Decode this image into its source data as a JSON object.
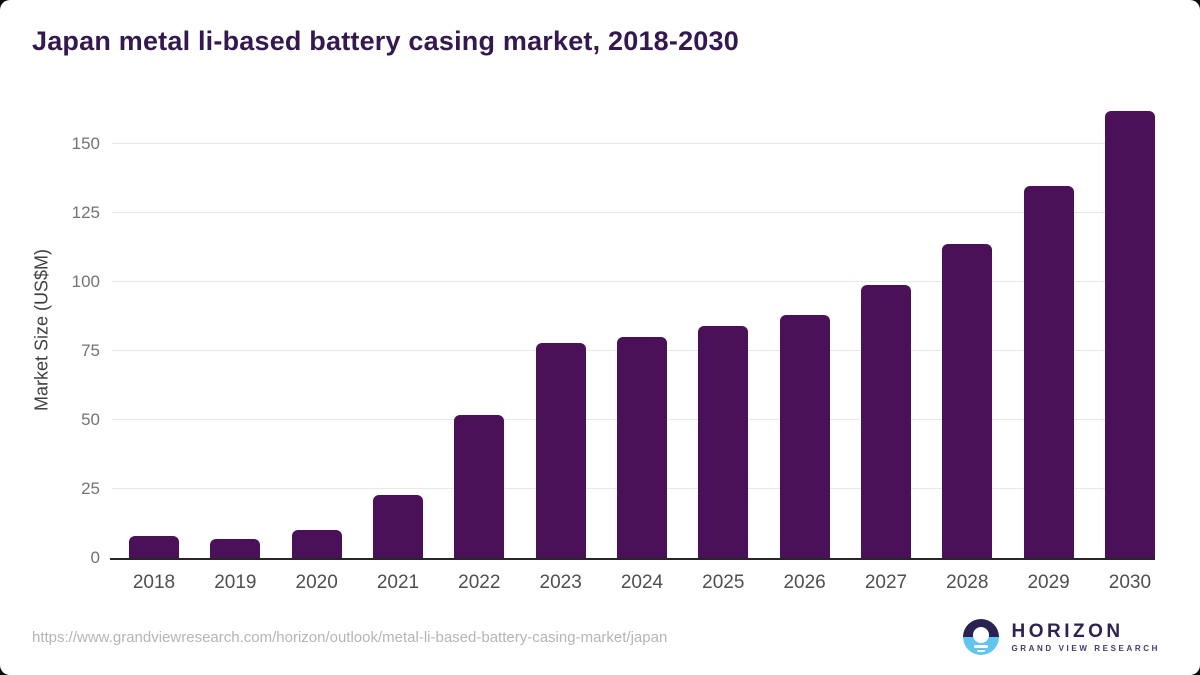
{
  "chart_data": {
    "type": "bar",
    "title": "Japan metal li-based battery casing market, 2018-2030",
    "categories": [
      "2018",
      "2019",
      "2020",
      "2021",
      "2022",
      "2023",
      "2024",
      "2025",
      "2026",
      "2027",
      "2028",
      "2029",
      "2030"
    ],
    "values": [
      8,
      7,
      10,
      23,
      52,
      78,
      80,
      84,
      88,
      99,
      114,
      135,
      162
    ],
    "xlabel": "",
    "ylabel": "Market Size (US$M)",
    "yticks": [
      0,
      25,
      50,
      75,
      100,
      125,
      150
    ],
    "ylim": [
      0,
      165
    ],
    "grid": true,
    "legend": false,
    "bar_color": "#4a1158"
  },
  "colors": {
    "title": "#33194f",
    "bar": "#4a1158",
    "gridline": "#e8e8e8",
    "axis_line": "#262626",
    "logo_navy": "#2b2153",
    "logo_blue": "#62c5f0"
  },
  "footer": {
    "url": "https://www.grandviewresearch.com/horizon/outlook/metal-li-based-battery-casing-market/japan",
    "logo": {
      "name": "HORIZON",
      "tagline": "GRAND VIEW RESEARCH"
    }
  }
}
